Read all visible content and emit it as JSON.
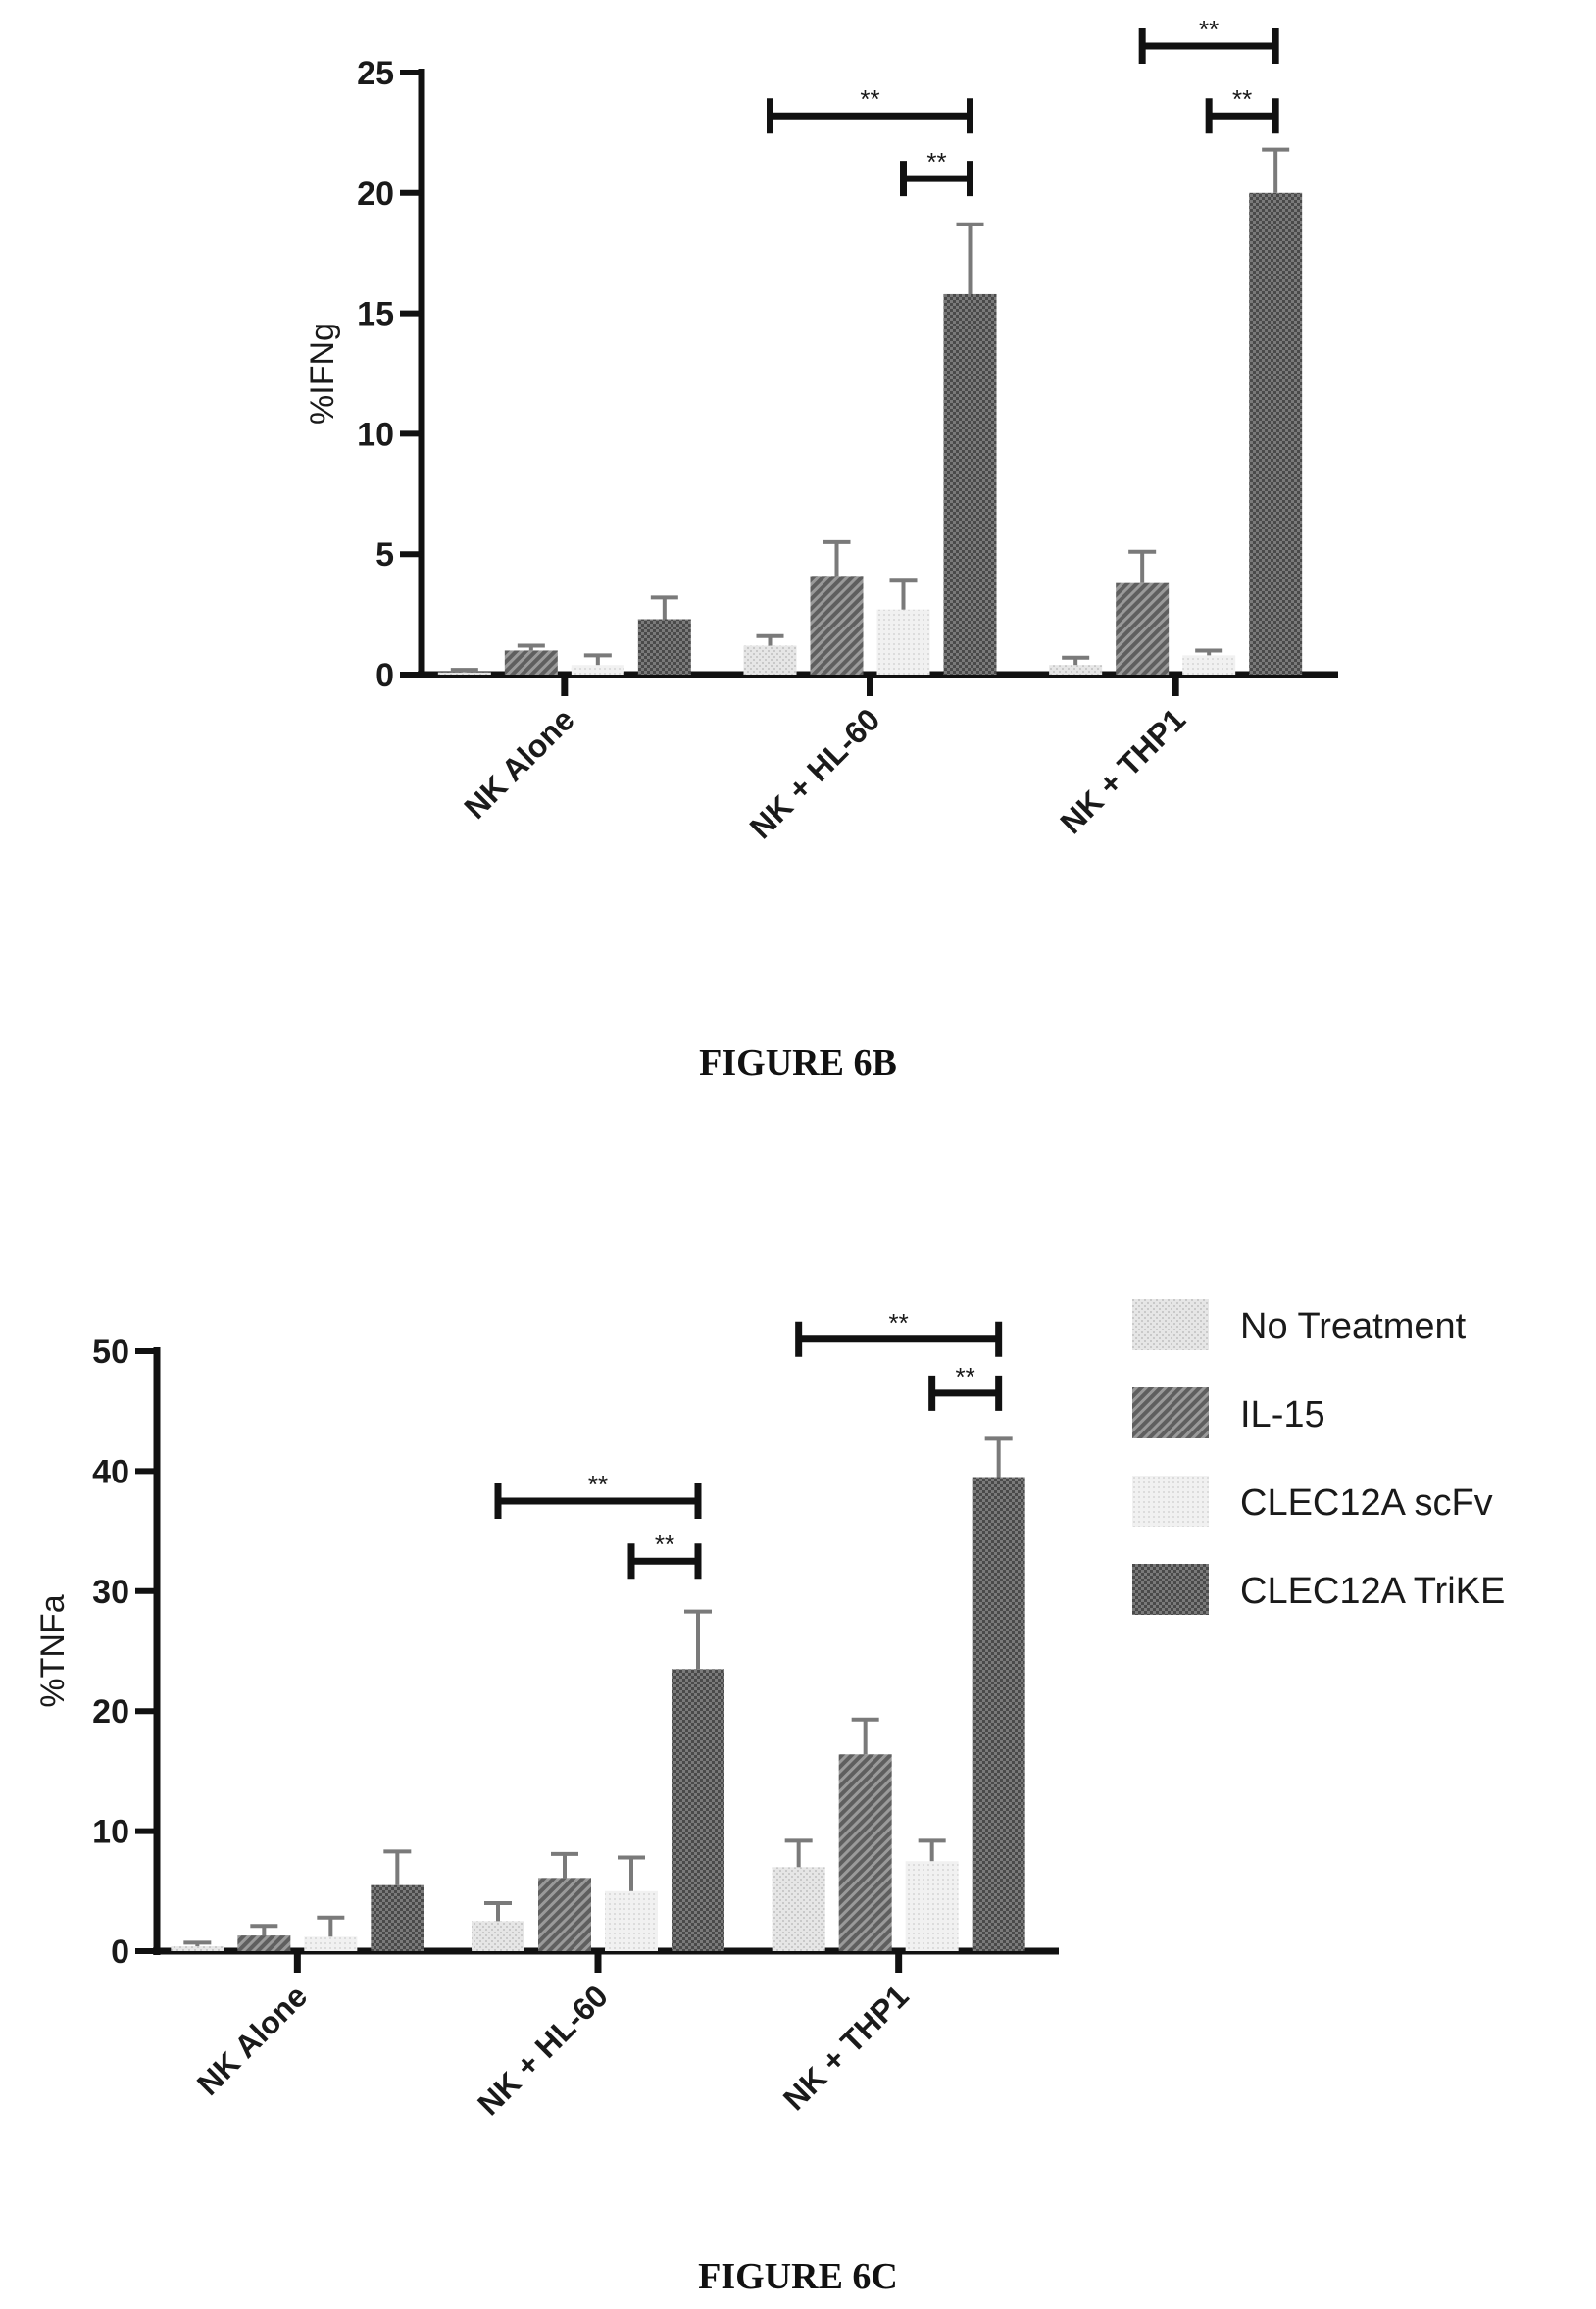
{
  "figures": {
    "b_caption": "FIGURE 6B",
    "c_caption": "FIGURE 6C"
  },
  "colors": {
    "no_treatment": "#c9c9c9",
    "il15": "#5f5f5f",
    "clec12a_scfv": "#dcdcdc",
    "clec12a_trike": "#4a4a4a",
    "axis": "#111111"
  },
  "legend": [
    "No Treatment",
    "IL-15",
    "CLEC12A scFv",
    "CLEC12A TriKE"
  ],
  "chart_data": [
    {
      "id": "6B",
      "type": "bar",
      "title": "",
      "xlabel": "",
      "ylabel": "%IFNg",
      "ylim": [
        0,
        25
      ],
      "yticks": [
        "0",
        "5",
        "10",
        "15",
        "20",
        "25"
      ],
      "categories": [
        "NK Alone",
        "NK + HL-60",
        "NK + THP1"
      ],
      "series": [
        {
          "name": "No Treatment",
          "values": [
            0.1,
            1.2,
            0.4
          ],
          "errors": [
            0.1,
            0.4,
            0.3
          ]
        },
        {
          "name": "IL-15",
          "values": [
            1.0,
            4.1,
            3.8
          ],
          "errors": [
            0.2,
            1.4,
            1.3
          ]
        },
        {
          "name": "CLEC12A scFv",
          "values": [
            0.4,
            2.7,
            0.8
          ],
          "errors": [
            0.4,
            1.2,
            0.2
          ]
        },
        {
          "name": "CLEC12A TriKE",
          "values": [
            2.3,
            15.8,
            20.0
          ],
          "errors": [
            0.9,
            2.9,
            1.8
          ]
        }
      ],
      "significance": [
        {
          "category": 1,
          "from": 0,
          "to": 3,
          "label": "**",
          "level": 23.2
        },
        {
          "category": 1,
          "from": 2,
          "to": 3,
          "label": "**",
          "level": 20.6
        },
        {
          "category": 2,
          "from": 1,
          "to": 3,
          "label": "**",
          "level": 26.1
        },
        {
          "category": 2,
          "from": 2,
          "to": 3,
          "label": "**",
          "level": 23.2
        }
      ],
      "grid": false,
      "legend": "none"
    },
    {
      "id": "6C",
      "type": "bar",
      "title": "",
      "xlabel": "",
      "ylabel": "%TNFa",
      "ylim": [
        0,
        50
      ],
      "yticks": [
        "0",
        "10",
        "20",
        "30",
        "40",
        "50"
      ],
      "categories": [
        "NK Alone",
        "NK + HL-60",
        "NK + THP1"
      ],
      "series": [
        {
          "name": "No Treatment",
          "values": [
            0.4,
            2.5,
            7.0
          ],
          "errors": [
            0.3,
            1.5,
            2.2
          ]
        },
        {
          "name": "IL-15",
          "values": [
            1.3,
            6.1,
            16.4
          ],
          "errors": [
            0.8,
            2.0,
            2.9
          ]
        },
        {
          "name": "CLEC12A scFv",
          "values": [
            1.2,
            5.0,
            7.5
          ],
          "errors": [
            1.6,
            2.8,
            1.7
          ]
        },
        {
          "name": "CLEC12A TriKE",
          "values": [
            5.5,
            23.5,
            39.5
          ],
          "errors": [
            2.8,
            4.8,
            3.2
          ]
        }
      ],
      "significance": [
        {
          "category": 1,
          "from": 0,
          "to": 3,
          "label": "**",
          "level": 37.5
        },
        {
          "category": 1,
          "from": 2,
          "to": 3,
          "label": "**",
          "level": 32.5
        },
        {
          "category": 2,
          "from": 0,
          "to": 3,
          "label": "**",
          "level": 51.0
        },
        {
          "category": 2,
          "from": 2,
          "to": 3,
          "label": "**",
          "level": 46.5
        }
      ],
      "grid": false,
      "legend": "right"
    }
  ]
}
